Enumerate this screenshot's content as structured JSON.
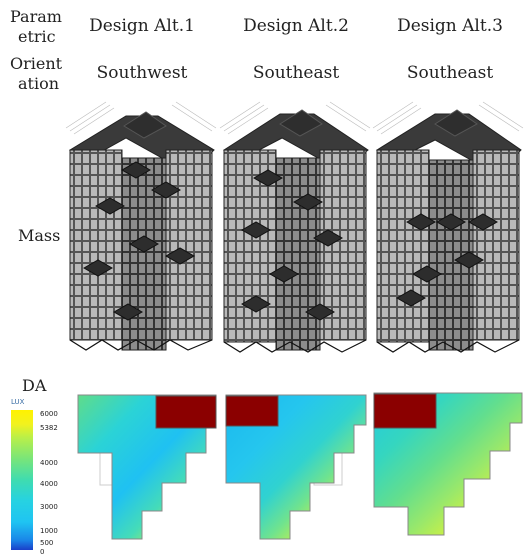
{
  "row_labels": {
    "parametric": [
      "Param",
      "etric"
    ],
    "orientation": [
      "Orient",
      "ation"
    ],
    "mass": "Mass",
    "da": "DA"
  },
  "columns": [
    {
      "header": "Design  Alt.1",
      "orientation": "Southwest"
    },
    {
      "header": "Design  Alt.2",
      "orientation": "Southeast"
    },
    {
      "header": "Design  Alt.3",
      "orientation": "Southeast"
    }
  ],
  "legend": {
    "title": "LUX",
    "ticks": [
      "6000",
      "5382",
      "4000",
      "4000",
      "3000",
      "1000",
      "500",
      "0"
    ],
    "colors": {
      "max": "#fff200",
      "mid": "#26d2e2",
      "min": "#1a3fc9",
      "core": "#8b0000"
    }
  }
}
